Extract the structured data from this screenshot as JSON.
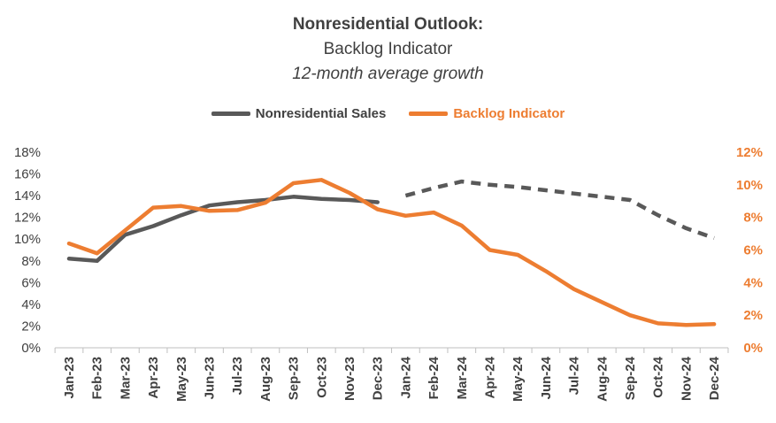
{
  "title": "Nonresidential Outlook:",
  "subtitle": "Backlog Indicator",
  "subtitle2": "12-month average growth",
  "colors": {
    "sales": "#595959",
    "backlog": "#ED7D31",
    "axis": "#bfbfbf"
  },
  "chart_data": {
    "type": "line",
    "title": "Nonresidential Outlook:",
    "categories": [
      "Jan-23",
      "Feb-23",
      "Mar-23",
      "Apr-23",
      "May-23",
      "Jun-23",
      "Jul-23",
      "Aug-23",
      "Sep-23",
      "Oct-23",
      "Nov-23",
      "Dec-23",
      "Jan-24",
      "Feb-24",
      "Mar-24",
      "Apr-24",
      "May-24",
      "Jun-24",
      "Jul-24",
      "Aug-24",
      "Sep-24",
      "Oct-24",
      "Nov-24",
      "Dec-24"
    ],
    "series": [
      {
        "name": "Nonresidential Sales",
        "axis": "left",
        "color": "#595959",
        "values": [
          8.2,
          8.0,
          10.4,
          11.2,
          12.2,
          13.1,
          13.4,
          13.6,
          13.9,
          13.7,
          13.6,
          13.4,
          null,
          null,
          null,
          null,
          null,
          null,
          null,
          null,
          null,
          null,
          null,
          null
        ],
        "forecast_values": [
          null,
          null,
          null,
          null,
          null,
          null,
          null,
          null,
          null,
          null,
          null,
          null,
          14.0,
          14.7,
          15.3,
          15.0,
          14.8,
          14.5,
          14.2,
          13.9,
          13.6,
          12.2,
          11.0,
          10.1
        ],
        "forecast_style": "dashed"
      },
      {
        "name": "Backlog Indicator",
        "axis": "right",
        "color": "#ED7D31",
        "values": [
          6.4,
          5.8,
          7.2,
          8.6,
          8.7,
          8.4,
          8.45,
          8.9,
          10.1,
          10.3,
          9.5,
          8.5,
          8.1,
          8.3,
          7.5,
          6.0,
          5.7,
          4.7,
          3.6,
          2.8,
          2.0,
          1.5,
          1.4,
          1.45
        ]
      }
    ],
    "yleft": {
      "min": 0,
      "max": 18,
      "step": 2,
      "tick_labels": [
        "0%",
        "2%",
        "4%",
        "6%",
        "8%",
        "10%",
        "12%",
        "14%",
        "16%",
        "18%"
      ]
    },
    "yright": {
      "min": 0,
      "max": 12,
      "step": 2,
      "tick_labels": [
        "0%",
        "2%",
        "4%",
        "6%",
        "8%",
        "10%",
        "12%"
      ]
    },
    "grid": false,
    "legend": "top-center"
  }
}
